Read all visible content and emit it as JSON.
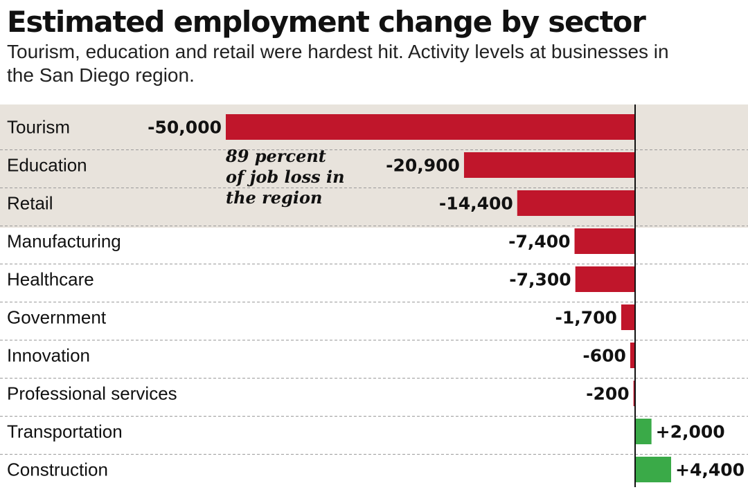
{
  "title": "Estimated employment change by sector",
  "subtitle": "Tourism, education and retail were hardest hit. Activity levels at businesses in the San Diego region.",
  "chart_data": {
    "type": "bar",
    "orientation": "horizontal",
    "categories": [
      "Tourism",
      "Education",
      "Retail",
      "Manufacturing",
      "Healthcare",
      "Government",
      "Innovation",
      "Professional services",
      "Transportation",
      "Construction"
    ],
    "values": [
      -50000,
      -20900,
      -14400,
      -7400,
      -7300,
      -1700,
      -600,
      -200,
      2000,
      4400
    ],
    "data_labels": [
      "-50,000",
      "-20,900",
      "-14,400",
      "-7,400",
      "-7,300",
      "-1,700",
      "-600",
      "-200",
      "+2,000",
      "+4,400"
    ],
    "xlim": [
      -50000,
      13500
    ],
    "highlight_rows": [
      "Tourism",
      "Education",
      "Retail"
    ],
    "annotation": {
      "lines": [
        "89 percent",
        "of job loss in",
        "the region"
      ]
    },
    "colors": {
      "negative": "#c0162b",
      "positive": "#3aaa48",
      "highlight_band": "#e8e3dc",
      "gridline": "#9a9a9a",
      "axis": "#111111"
    },
    "grid": "dashed row separators"
  }
}
